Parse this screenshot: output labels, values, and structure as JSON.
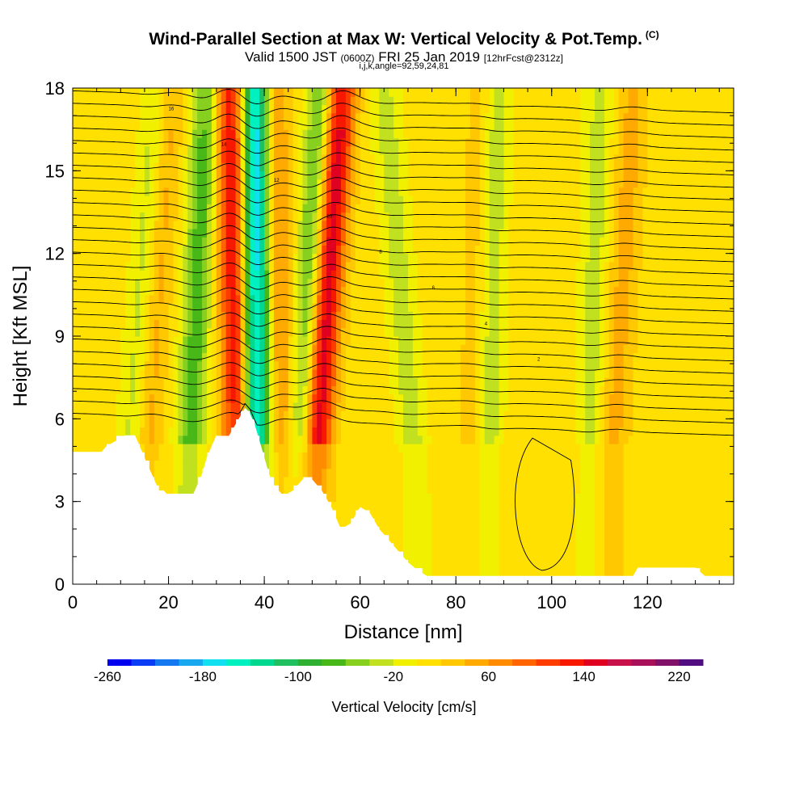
{
  "title": {
    "main": "Wind-Parallel Section at Max W: Vertical Velocity & Pot.Temp.",
    "copyright": "(C)",
    "valid_a": "Valid 1500 JST",
    "valid_utc": "(0600Z)",
    "valid_b": "FRI 25 Jan 2019",
    "forecast": "[12hrFcst@2312z]",
    "params": "i,j,k,angle=92,59,24,81"
  },
  "chart_data": {
    "type": "heatmap",
    "xlabel": "Distance [nm]",
    "ylabel": "Height [Kft MSL]",
    "xlim": [
      0,
      138
    ],
    "ylim": [
      0,
      18
    ],
    "x_ticks": [
      "0",
      "20",
      "40",
      "60",
      "80",
      "100",
      "120"
    ],
    "y_ticks": [
      "0",
      "3",
      "6",
      "9",
      "12",
      "15",
      "18"
    ],
    "colorbar": {
      "label": "Vertical Velocity [cm/s]",
      "tick_labels": [
        "-260",
        "-180",
        "-100",
        "-20",
        "60",
        "140",
        "220"
      ],
      "range": [
        -260,
        240
      ],
      "step": 20,
      "colors": [
        "#0000ee",
        "#0a3cf5",
        "#1478f0",
        "#18a8f0",
        "#10e0f0",
        "#00f0c0",
        "#00d890",
        "#20c060",
        "#30b030",
        "#48b818",
        "#88d020",
        "#c0e020",
        "#f0f000",
        "#ffe000",
        "#ffc800",
        "#ffaa00",
        "#ff8c00",
        "#ff6400",
        "#ff3c00",
        "#f81800",
        "#e00020",
        "#c8104a",
        "#a8105a",
        "#801068",
        "#500c80"
      ]
    },
    "terrain_profile": {
      "x": [
        0,
        6,
        7,
        9,
        11,
        13,
        14,
        15,
        16,
        17,
        18,
        19,
        20,
        25,
        26,
        27,
        28,
        29,
        30,
        32,
        34,
        36,
        37,
        38,
        39,
        40,
        41,
        42,
        43,
        44,
        46,
        48,
        50,
        52,
        54,
        56,
        58,
        60,
        62,
        64,
        66,
        68,
        70,
        72,
        74,
        76,
        80,
        90,
        100,
        110,
        117,
        118,
        124,
        125,
        130,
        132,
        138
      ],
      "y": [
        4.8,
        4.8,
        5.0,
        5.2,
        5.4,
        5.4,
        5.0,
        4.6,
        4.2,
        3.8,
        3.4,
        3.4,
        3.2,
        3.2,
        3.6,
        4.0,
        4.6,
        5.0,
        5.4,
        5.2,
        5.8,
        6.4,
        6.2,
        5.8,
        5.2,
        4.6,
        4.0,
        3.6,
        3.4,
        3.2,
        3.4,
        3.8,
        3.8,
        3.4,
        2.8,
        2.0,
        2.2,
        2.8,
        2.6,
        2.0,
        1.6,
        1.2,
        0.8,
        0.5,
        0.3,
        0.3,
        0.3,
        0.3,
        0.3,
        0.3,
        0.3,
        0.6,
        0.6,
        0.6,
        0.6,
        0.3,
        0.3
      ]
    },
    "updraft_bands": [
      {
        "x_top": 33,
        "x_bottom": 35,
        "w": 150
      },
      {
        "x_top": 56,
        "x_bottom": 50,
        "w": 160
      },
      {
        "x_top": 20,
        "x_bottom": 14,
        "w": 60
      },
      {
        "x_top": 42,
        "x_bottom": 44,
        "w": 60
      },
      {
        "x_top": 86,
        "x_bottom": 84,
        "w": 40
      },
      {
        "x_top": 117,
        "x_bottom": 112,
        "w": 40
      }
    ],
    "downdraft_bands": [
      {
        "x_top": 38,
        "x_bottom": 38,
        "w": -200
      },
      {
        "x_top": 52,
        "x_bottom": 47,
        "w": -90
      },
      {
        "x_top": 28,
        "x_bottom": 24,
        "w": -80
      },
      {
        "x_top": 18,
        "x_bottom": 12,
        "w": -60
      },
      {
        "x_top": 88,
        "x_bottom": 86,
        "w": -60
      },
      {
        "x_top": 65,
        "x_bottom": 72,
        "w": -40
      },
      {
        "x_top": 110,
        "x_bottom": 108,
        "w": -40
      }
    ],
    "isentrope_spacing_kft": 0.45,
    "isentrope_labels": [
      "16",
      "14",
      "12",
      "10",
      "8",
      "6",
      "4",
      "2"
    ]
  }
}
